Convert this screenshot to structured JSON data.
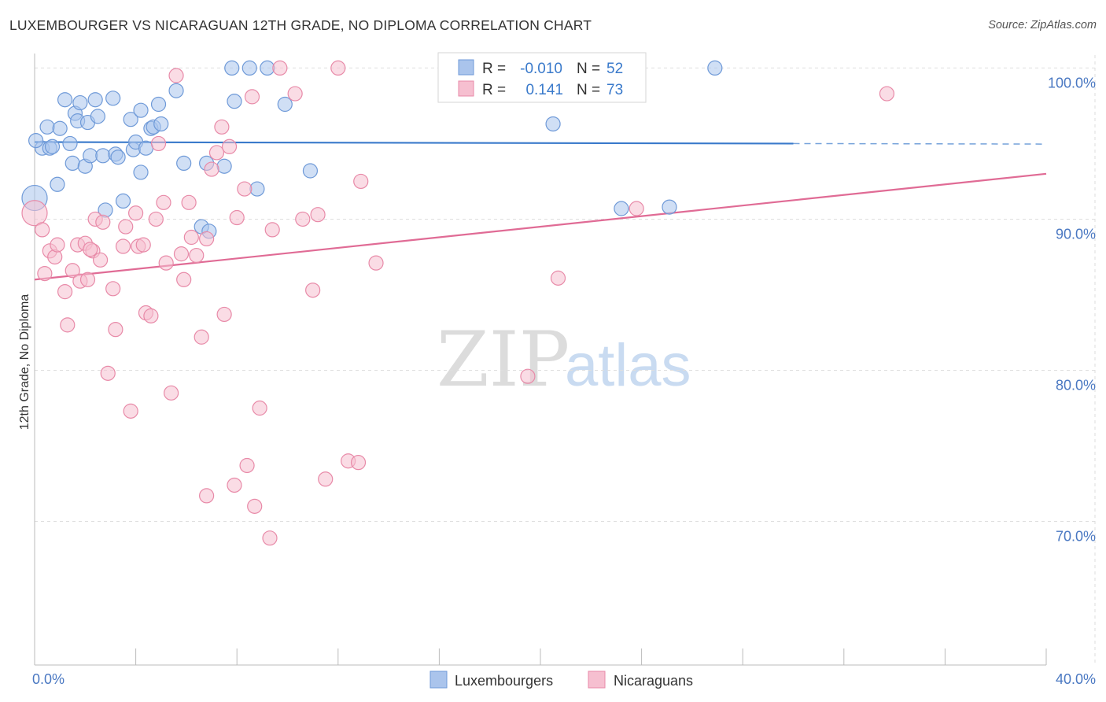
{
  "title": "LUXEMBOURGER VS NICARAGUAN 12TH GRADE, NO DIPLOMA CORRELATION CHART",
  "source": "Source: ZipAtlas.com",
  "watermark": {
    "zip": "ZIP",
    "atlas": "atlas"
  },
  "legend_box": {
    "rows": [
      {
        "r_label": "R =",
        "r_value": "-0.010",
        "n_label": "N =",
        "n_value": "52"
      },
      {
        "r_label": "R =",
        "r_value": "0.141",
        "n_label": "N =",
        "n_value": "73"
      }
    ]
  },
  "colors": {
    "blue_fill": "#aac4ec",
    "blue_stroke": "#6f9ad8",
    "blue_line": "#3a7acb",
    "pink_fill": "#f6bfd0",
    "pink_stroke": "#e88aa8",
    "pink_line": "#e06b95",
    "tick_text": "#4a78c2",
    "grid": "#dedede"
  },
  "chart_data": {
    "type": "scatter",
    "title": "LUXEMBOURGER VS NICARAGUAN 12TH GRADE, NO DIPLOMA CORRELATION CHART",
    "ylabel": "12th Grade, No Diploma",
    "xlabel": "",
    "xlim": [
      0,
      40
    ],
    "ylim": [
      60.5,
      102
    ],
    "x_tick_labels": [
      "0.0%",
      "40.0%"
    ],
    "y_ticks": [
      70,
      80,
      90,
      100
    ],
    "y_tick_labels": [
      "70.0%",
      "80.0%",
      "90.0%",
      "100.0%"
    ],
    "grid": true,
    "legend_position": "bottom",
    "series": [
      {
        "name": "Luxembourgers",
        "color": "blue",
        "trend": {
          "x": [
            0,
            30
          ],
          "y": [
            95.1,
            95.0
          ],
          "dashed_to_x": 40
        },
        "points": [
          [
            0.0,
            91.4
          ],
          [
            0.3,
            94.7
          ],
          [
            0.5,
            96.1
          ],
          [
            0.6,
            94.7
          ],
          [
            0.7,
            94.8
          ],
          [
            0.9,
            92.3
          ],
          [
            1.0,
            96.0
          ],
          [
            1.2,
            97.9
          ],
          [
            1.4,
            95.0
          ],
          [
            1.5,
            93.7
          ],
          [
            1.6,
            97.0
          ],
          [
            1.7,
            96.5
          ],
          [
            1.8,
            97.7
          ],
          [
            2.0,
            93.5
          ],
          [
            2.1,
            96.4
          ],
          [
            2.2,
            94.2
          ],
          [
            2.4,
            97.9
          ],
          [
            2.5,
            96.8
          ],
          [
            2.7,
            94.2
          ],
          [
            2.8,
            90.6
          ],
          [
            3.1,
            98.0
          ],
          [
            3.2,
            94.3
          ],
          [
            3.3,
            94.1
          ],
          [
            3.5,
            91.2
          ],
          [
            3.8,
            96.6
          ],
          [
            3.9,
            94.6
          ],
          [
            4.0,
            95.1
          ],
          [
            4.2,
            97.2
          ],
          [
            4.2,
            93.1
          ],
          [
            4.4,
            94.7
          ],
          [
            4.6,
            96.0
          ],
          [
            4.7,
            96.1
          ],
          [
            4.9,
            97.6
          ],
          [
            5.0,
            96.3
          ],
          [
            5.6,
            98.5
          ],
          [
            5.9,
            93.7
          ],
          [
            6.6,
            89.5
          ],
          [
            6.8,
            93.7
          ],
          [
            6.9,
            89.2
          ],
          [
            7.5,
            93.5
          ],
          [
            7.8,
            100.0
          ],
          [
            7.9,
            97.8
          ],
          [
            8.5,
            100.0
          ],
          [
            8.8,
            92.0
          ],
          [
            9.2,
            100.0
          ],
          [
            9.9,
            97.6
          ],
          [
            10.9,
            93.2
          ],
          [
            20.5,
            96.3
          ],
          [
            23.2,
            90.7
          ],
          [
            25.1,
            90.8
          ],
          [
            26.9,
            100.0
          ],
          [
            0.05,
            95.2
          ]
        ]
      },
      {
        "name": "Nicaraguans",
        "color": "pink",
        "trend": {
          "x": [
            0,
            40
          ],
          "y": [
            86.0,
            93.0
          ]
        },
        "points": [
          [
            0.0,
            90.4
          ],
          [
            0.3,
            89.3
          ],
          [
            0.4,
            86.4
          ],
          [
            0.6,
            87.9
          ],
          [
            0.8,
            87.5
          ],
          [
            0.9,
            88.3
          ],
          [
            1.2,
            85.2
          ],
          [
            1.3,
            83.0
          ],
          [
            1.5,
            86.6
          ],
          [
            1.7,
            88.3
          ],
          [
            1.8,
            85.9
          ],
          [
            2.0,
            88.4
          ],
          [
            2.1,
            86.0
          ],
          [
            2.3,
            87.9
          ],
          [
            2.4,
            90.0
          ],
          [
            2.6,
            87.3
          ],
          [
            2.7,
            89.8
          ],
          [
            2.9,
            79.8
          ],
          [
            3.1,
            85.4
          ],
          [
            3.2,
            82.7
          ],
          [
            3.5,
            88.2
          ],
          [
            3.6,
            89.5
          ],
          [
            3.8,
            77.3
          ],
          [
            4.0,
            90.4
          ],
          [
            4.1,
            88.2
          ],
          [
            4.3,
            88.3
          ],
          [
            4.4,
            83.8
          ],
          [
            4.6,
            83.6
          ],
          [
            4.8,
            90.0
          ],
          [
            4.9,
            95.0
          ],
          [
            5.1,
            91.1
          ],
          [
            5.2,
            87.1
          ],
          [
            5.4,
            78.5
          ],
          [
            5.6,
            99.5
          ],
          [
            5.8,
            87.7
          ],
          [
            5.9,
            86.0
          ],
          [
            6.1,
            91.1
          ],
          [
            6.2,
            88.8
          ],
          [
            6.4,
            87.6
          ],
          [
            6.6,
            82.2
          ],
          [
            6.8,
            88.7
          ],
          [
            7.0,
            93.3
          ],
          [
            7.2,
            94.4
          ],
          [
            7.4,
            96.1
          ],
          [
            7.5,
            83.7
          ],
          [
            7.7,
            94.8
          ],
          [
            7.9,
            72.4
          ],
          [
            8.0,
            90.1
          ],
          [
            8.3,
            92.0
          ],
          [
            8.4,
            73.7
          ],
          [
            8.6,
            98.1
          ],
          [
            8.7,
            71.0
          ],
          [
            8.9,
            77.5
          ],
          [
            9.3,
            68.9
          ],
          [
            9.4,
            89.3
          ],
          [
            9.7,
            100.0
          ],
          [
            10.3,
            98.3
          ],
          [
            10.6,
            90.0
          ],
          [
            11.0,
            85.3
          ],
          [
            11.2,
            90.3
          ],
          [
            11.5,
            72.8
          ],
          [
            12.0,
            100.0
          ],
          [
            12.4,
            74.0
          ],
          [
            12.8,
            73.9
          ],
          [
            12.9,
            92.5
          ],
          [
            13.5,
            87.1
          ],
          [
            19.5,
            79.6
          ],
          [
            20.7,
            86.1
          ],
          [
            21.5,
            100.0
          ],
          [
            23.8,
            90.7
          ],
          [
            33.7,
            98.3
          ],
          [
            6.8,
            71.7
          ],
          [
            2.2,
            88.0
          ]
        ]
      }
    ]
  }
}
